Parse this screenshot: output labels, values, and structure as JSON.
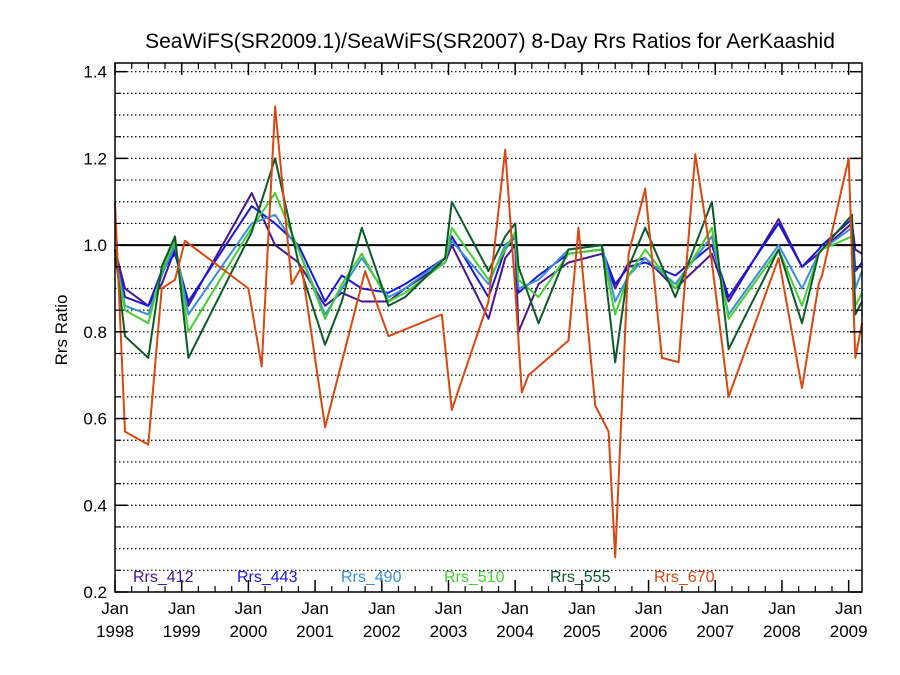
{
  "chart_data": {
    "type": "line",
    "title": "SeaWiFS(SR2009.1)/SeaWiFS(SR2007) 8-Day Rrs Ratios for AerKaashid",
    "xlabel": "",
    "ylabel": "Rrs Ratio",
    "xlim": [
      1998.0,
      2009.2
    ],
    "ylim": [
      0.2,
      1.42
    ],
    "yticks": [
      0.2,
      0.4,
      0.6,
      0.8,
      1.0,
      1.2,
      1.4
    ],
    "ytick_labels": [
      "0.2",
      "0.4",
      "0.6",
      "0.8",
      "1.0",
      "1.2",
      "1.4"
    ],
    "xticks": [
      {
        "x": 1998,
        "month": "Jan",
        "year": "1998"
      },
      {
        "x": 1999,
        "month": "Jan",
        "year": "1999"
      },
      {
        "x": 2000,
        "month": "Jan",
        "year": "2000"
      },
      {
        "x": 2001,
        "month": "Jan",
        "year": "2001"
      },
      {
        "x": 2002,
        "month": "Jan",
        "year": "2002"
      },
      {
        "x": 2003,
        "month": "Jan",
        "year": "2003"
      },
      {
        "x": 2004,
        "month": "Jan",
        "year": "2004"
      },
      {
        "x": 2005,
        "month": "Jan",
        "year": "2005"
      },
      {
        "x": 2006,
        "month": "Jan",
        "year": "2006"
      },
      {
        "x": 2007,
        "month": "Jan",
        "year": "2007"
      },
      {
        "x": 2008,
        "month": "Jan",
        "year": "2008"
      },
      {
        "x": 2009,
        "month": "Jan",
        "year": "2009"
      }
    ],
    "grid": "horizontal dotted lines every 0.05",
    "reference_line": 1.0,
    "legend_position": "bottom, inside plot",
    "series": [
      {
        "name": "Rrs_412",
        "color": "#4a1590",
        "x": [
          1998.0,
          1998.15,
          1998.5,
          1998.7,
          1998.9,
          1999.1,
          2000.05,
          2000.4,
          2000.75,
          2001.15,
          2001.4,
          2001.7,
          2002.1,
          2002.35,
          2002.95,
          2003.05,
          2003.6,
          2003.85,
          2004.0,
          2004.05,
          2004.35,
          2004.8,
          2005.3,
          2005.5,
          2005.7,
          2005.95,
          2006.4,
          2006.95,
          2007.2,
          2007.95,
          2008.3,
          2008.55,
          2008.6,
          2009.05,
          2009.1,
          2009.2
        ],
        "y": [
          0.99,
          0.9,
          0.86,
          0.91,
          0.99,
          0.86,
          1.12,
          1.0,
          0.96,
          0.86,
          0.89,
          0.87,
          0.87,
          0.9,
          0.96,
          1.0,
          0.83,
          0.97,
          1.0,
          0.8,
          0.91,
          0.96,
          0.98,
          0.9,
          0.96,
          0.97,
          0.9,
          0.98,
          0.87,
          1.06,
          0.95,
          0.98,
          0.99,
          1.05,
          0.99,
          0.98
        ]
      },
      {
        "name": "Rrs_443",
        "color": "#1a18d8",
        "x": [
          1998.0,
          1998.15,
          1998.5,
          1998.7,
          1998.9,
          1999.1,
          2000.05,
          2000.4,
          2000.75,
          2001.15,
          2001.4,
          2001.7,
          2002.1,
          2002.35,
          2002.95,
          2003.05,
          2003.6,
          2003.85,
          2004.0,
          2004.05,
          2004.35,
          2004.8,
          2005.3,
          2005.5,
          2005.7,
          2005.95,
          2006.4,
          2006.95,
          2007.2,
          2007.95,
          2008.3,
          2008.55,
          2008.6,
          2009.05,
          2009.1,
          2009.2
        ],
        "y": [
          0.98,
          0.88,
          0.86,
          0.94,
          0.98,
          0.87,
          1.09,
          1.05,
          1.0,
          0.87,
          0.93,
          0.9,
          0.89,
          0.91,
          0.97,
          1.02,
          0.88,
          0.99,
          1.02,
          0.89,
          0.93,
          0.98,
          0.99,
          0.91,
          0.95,
          0.96,
          0.93,
          1.0,
          0.88,
          1.05,
          0.95,
          0.99,
          1.0,
          1.06,
          0.94,
          0.96
        ]
      },
      {
        "name": "Rrs_490",
        "color": "#3a8fd8",
        "x": [
          1998.0,
          1998.15,
          1998.5,
          1998.7,
          1998.9,
          1999.1,
          2000.05,
          2000.4,
          2000.75,
          2001.15,
          2001.4,
          2001.7,
          2002.1,
          2002.35,
          2002.95,
          2003.05,
          2003.6,
          2003.85,
          2004.0,
          2004.05,
          2004.35,
          2004.8,
          2005.3,
          2005.5,
          2005.7,
          2005.95,
          2006.4,
          2006.95,
          2007.2,
          2007.95,
          2008.3,
          2008.55,
          2008.6,
          2009.05,
          2009.1,
          2009.2
        ],
        "y": [
          0.98,
          0.86,
          0.84,
          0.93,
          1.0,
          0.84,
          1.05,
          1.07,
          0.99,
          0.84,
          0.9,
          0.97,
          0.88,
          0.9,
          0.97,
          1.01,
          0.91,
          1.0,
          1.02,
          0.9,
          0.92,
          0.99,
          1.0,
          0.87,
          0.93,
          0.97,
          0.91,
          1.02,
          0.84,
          1.0,
          0.9,
          0.98,
          0.99,
          1.04,
          0.9,
          0.94
        ]
      },
      {
        "name": "Rrs_510",
        "color": "#44d030",
        "x": [
          1998.0,
          1998.15,
          1998.5,
          1998.7,
          1998.9,
          1999.1,
          2000.05,
          2000.4,
          2000.75,
          2001.15,
          2001.4,
          2001.7,
          2002.1,
          2002.35,
          2002.95,
          2003.05,
          2003.6,
          2003.85,
          2004.0,
          2004.05,
          2004.35,
          2004.8,
          2005.3,
          2005.5,
          2005.7,
          2005.95,
          2006.4,
          2006.95,
          2007.2,
          2007.95,
          2008.3,
          2008.55,
          2008.6,
          2009.05,
          2009.1,
          2009.2
        ],
        "y": [
          0.97,
          0.85,
          0.82,
          0.94,
          1.01,
          0.8,
          1.04,
          1.12,
          0.99,
          0.83,
          0.91,
          0.98,
          0.87,
          0.89,
          0.96,
          1.04,
          0.92,
          0.99,
          1.03,
          0.92,
          0.88,
          0.98,
          0.99,
          0.84,
          0.93,
          0.99,
          0.9,
          1.04,
          0.83,
          0.99,
          0.86,
          0.98,
          0.99,
          1.02,
          0.86,
          0.89
        ]
      },
      {
        "name": "Rrs_555",
        "color": "#0c5a2a",
        "x": [
          1998.0,
          1998.15,
          1998.5,
          1998.7,
          1998.9,
          1999.1,
          2000.05,
          2000.4,
          2000.75,
          2001.15,
          2001.4,
          2001.7,
          2002.1,
          2002.35,
          2002.95,
          2003.05,
          2003.6,
          2003.85,
          2004.0,
          2004.05,
          2004.35,
          2004.8,
          2005.3,
          2005.5,
          2005.7,
          2005.95,
          2006.4,
          2006.95,
          2007.2,
          2007.95,
          2008.3,
          2008.55,
          2008.6,
          2009.05,
          2009.1,
          2009.2
        ],
        "y": [
          0.99,
          0.79,
          0.74,
          0.95,
          1.02,
          0.74,
          1.03,
          1.2,
          0.96,
          0.77,
          0.87,
          1.04,
          0.86,
          0.88,
          0.97,
          1.1,
          0.94,
          1.02,
          1.05,
          0.95,
          0.82,
          0.99,
          1.0,
          0.73,
          0.95,
          1.04,
          0.88,
          1.1,
          0.76,
          0.99,
          0.82,
          0.98,
          0.99,
          1.07,
          0.84,
          0.87
        ]
      },
      {
        "name": "Rrs_670",
        "color": "#d84810",
        "x": [
          1998.0,
          1998.15,
          1998.5,
          1998.7,
          1998.9,
          1999.05,
          2000.0,
          2000.2,
          2000.4,
          2000.65,
          2000.8,
          2001.15,
          2001.75,
          2002.1,
          2002.9,
          2003.05,
          2003.6,
          2003.85,
          2004.0,
          2004.1,
          2004.2,
          2004.8,
          2004.95,
          2005.2,
          2005.4,
          2005.5,
          2005.7,
          2005.95,
          2006.2,
          2006.45,
          2006.7,
          2006.95,
          2007.2,
          2007.95,
          2008.3,
          2008.55,
          2008.6,
          2009.0,
          2009.1,
          2009.2
        ],
        "y": [
          1.1,
          0.57,
          0.54,
          0.9,
          0.92,
          1.01,
          0.9,
          0.72,
          1.32,
          0.91,
          0.95,
          0.58,
          0.94,
          0.79,
          0.84,
          0.62,
          0.87,
          1.22,
          0.9,
          0.66,
          0.7,
          0.78,
          1.04,
          0.63,
          0.57,
          0.28,
          0.98,
          1.13,
          0.74,
          0.73,
          1.21,
          0.96,
          0.65,
          0.97,
          0.67,
          0.91,
          0.93,
          1.2,
          0.74,
          0.82
        ]
      }
    ]
  }
}
